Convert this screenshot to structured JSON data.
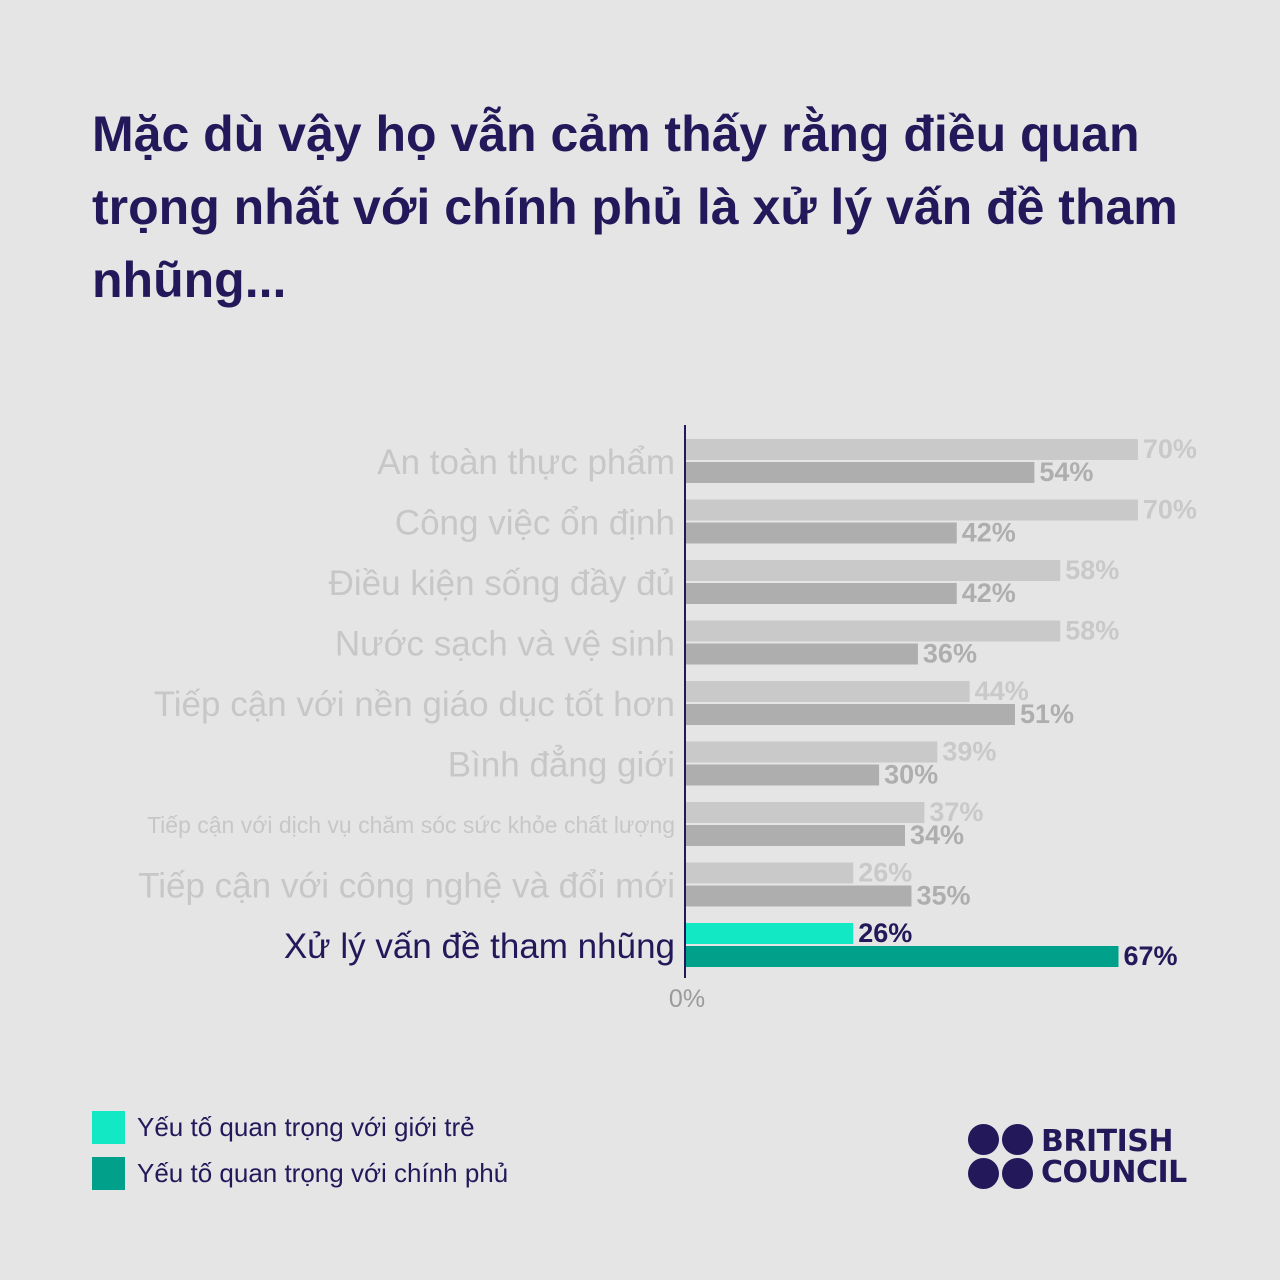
{
  "title": "Mặc dù vậy họ vẫn cảm thấy rằng điều quan trọng nhất với chính phủ là xử lý vấn đề tham nhũng...",
  "chart_data": {
    "type": "bar",
    "orientation": "horizontal",
    "categories": [
      "An toàn thực phẩm",
      "Công việc ổn định",
      "Điều kiện sống đầy đủ",
      "Nước sạch và vệ sinh",
      "Tiếp cận với nền giáo dục tốt hơn",
      "Bình đẳng giới",
      "Tiếp cận với dịch vụ chăm sóc sức khỏe chất lượng",
      "Tiếp cận với công nghệ và đổi mới",
      "Xử lý vấn đề tham nhũng"
    ],
    "series": [
      {
        "name": "Yếu tố quan trọng với giới trẻ",
        "values": [
          70,
          70,
          58,
          58,
          44,
          39,
          37,
          26,
          26
        ]
      },
      {
        "name": "Yếu tố quan trọng với chính phủ",
        "values": [
          54,
          42,
          42,
          36,
          51,
          30,
          34,
          35,
          67
        ]
      }
    ],
    "value_suffix": "%",
    "axis_min_label": "0%",
    "highlighted_category": "Xử lý vấn đề tham nhũng",
    "colors": {
      "youth": "#12e8c4",
      "government": "#00a08a",
      "muted_youth": "#c9c9c9",
      "muted_government": "#aeaeae",
      "muted_text": "#c7c7c7",
      "axis": "#23195a",
      "highlight_text": "#23195a",
      "axis_label": "#9a9a9a"
    }
  },
  "legend": [
    {
      "label": "Yếu tố quan trọng với giới trẻ",
      "color": "#12e8c4"
    },
    {
      "label": "Yếu tố quan trọng với chính phủ",
      "color": "#00a08a"
    }
  ],
  "logo": {
    "line1": "BRITISH",
    "line2": "COUNCIL"
  }
}
